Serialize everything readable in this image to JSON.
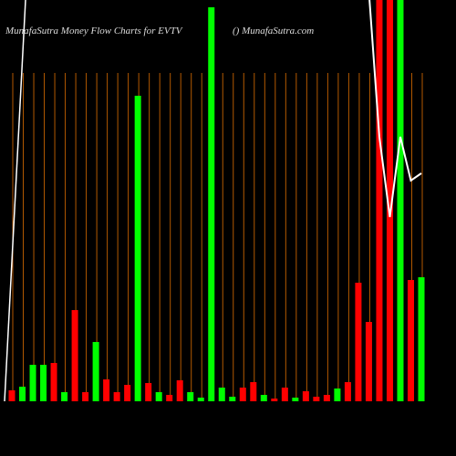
{
  "chart_data": {
    "type": "bar",
    "title": "MunafaSutra  Money Flow  Charts for EVTV",
    "subtitle": "() MunafaSutra.com",
    "ylim": [
      0,
      440
    ],
    "values": [
      12,
      16,
      40,
      40,
      42,
      10,
      100,
      10,
      65,
      24,
      10,
      18,
      335,
      20,
      10,
      7,
      23,
      10,
      4,
      432,
      15,
      5,
      15,
      21,
      7,
      3,
      15,
      4,
      11,
      5,
      7,
      14,
      21,
      130,
      87,
      460,
      460,
      460,
      133,
      136
    ],
    "colors": [
      "#ff0000",
      "#00ff00",
      "#00ff00",
      "#00ff00",
      "#ff0000",
      "#00ff00",
      "#ff0000",
      "#ff0000",
      "#00ff00",
      "#ff0000",
      "#ff0000",
      "#ff0000",
      "#00ff00",
      "#ff0000",
      "#00ff00",
      "#ff0000",
      "#ff0000",
      "#00ff00",
      "#00ff00",
      "#00ff00",
      "#00ff00",
      "#00ff00",
      "#ff0000",
      "#ff0000",
      "#00ff00",
      "#ff0000",
      "#ff0000",
      "#00ff00",
      "#ff0000",
      "#ff0000",
      "#ff0000",
      "#00ff00",
      "#ff0000",
      "#ff0000",
      "#ff0000",
      "#ff0000",
      "#ff0000",
      "#00ff00",
      "#ff0000",
      "#00ff00"
    ],
    "line_values": [
      null,
      null,
      null,
      null,
      null,
      null,
      null,
      null,
      null,
      null,
      null,
      null,
      null,
      null,
      null,
      null,
      null,
      null,
      null,
      null,
      null,
      null,
      null,
      null,
      null,
      null,
      null,
      null,
      null,
      null,
      null,
      null,
      null,
      null,
      450,
      290,
      202,
      290,
      242,
      250
    ],
    "line_color": "#ffffff",
    "grid_color": "#b35900"
  }
}
